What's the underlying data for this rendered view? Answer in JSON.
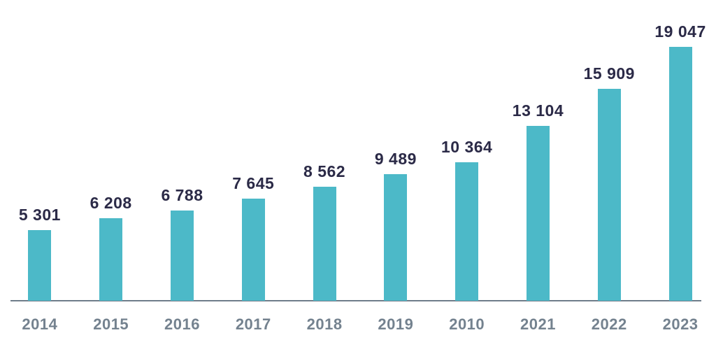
{
  "chart_data": {
    "type": "bar",
    "categories": [
      "2014",
      "2015",
      "2016",
      "2017",
      "2018",
      "2019",
      "2010",
      "2021",
      "2022",
      "2023"
    ],
    "values": [
      5301,
      6208,
      6788,
      7645,
      8562,
      9489,
      10364,
      13104,
      15909,
      19047
    ],
    "value_labels": [
      "5 301",
      "6 208",
      "6 788",
      "7 645",
      "8 562",
      "9 489",
      "10 364",
      "13 104",
      "15 909",
      "19 047"
    ],
    "title": "",
    "xlabel": "",
    "ylabel": "",
    "ylim": [
      0,
      19047
    ],
    "grid": false,
    "legend_position": "none",
    "colors": {
      "bar": "#4CB9C8",
      "value_label": "#2B2A47",
      "tick_label": "#74828F",
      "axis_line": "#6F7D8A"
    }
  }
}
